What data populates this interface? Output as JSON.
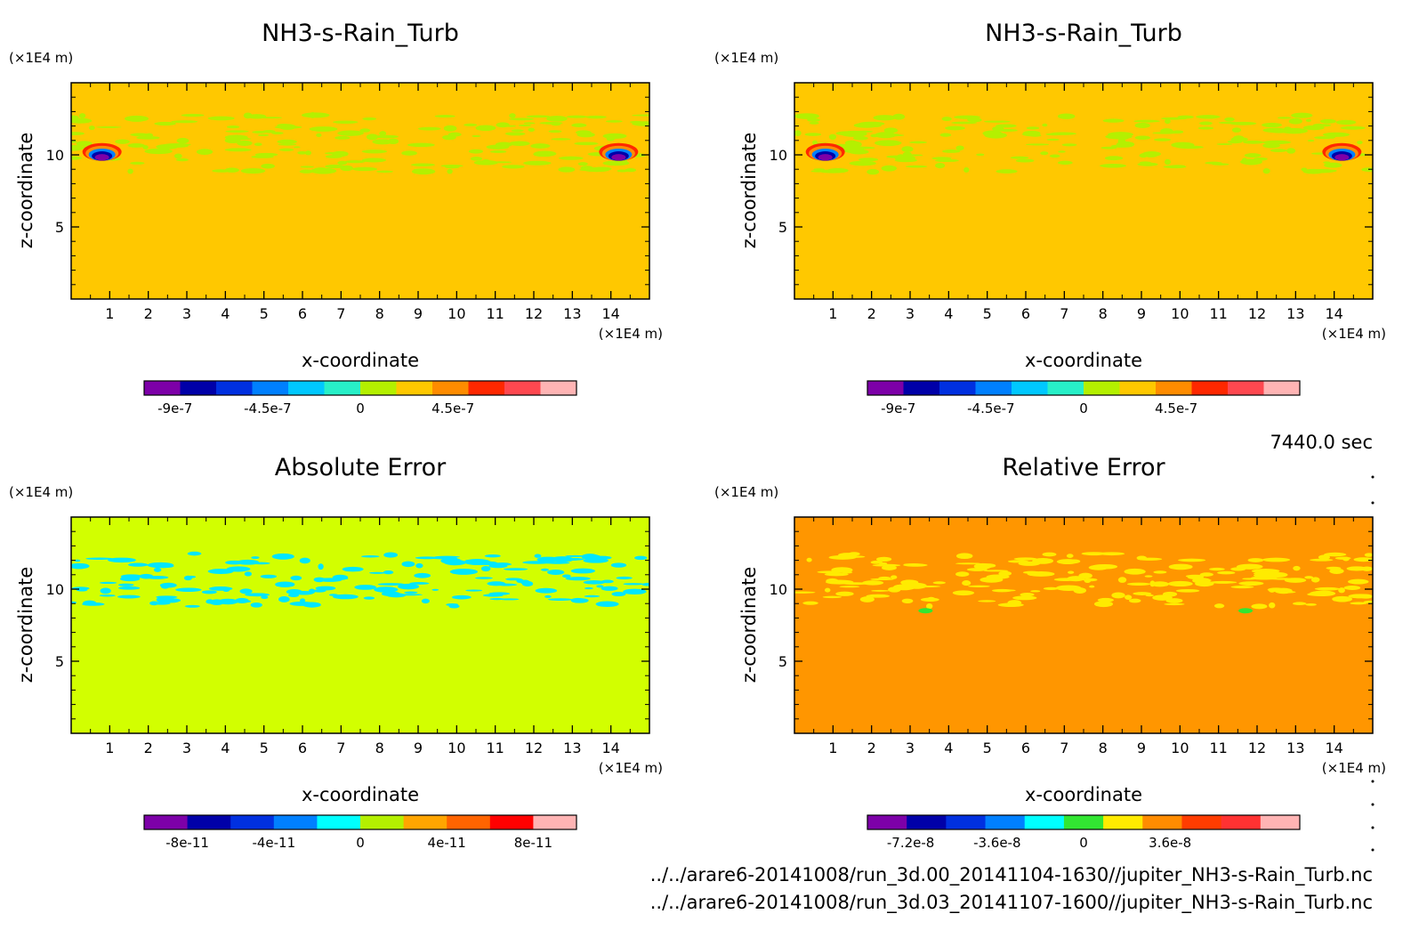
{
  "chart_data": [
    {
      "type": "heatmap",
      "panel": "top-left",
      "title": "NH3-s-Rain_Turb",
      "xlabel": "x-coordinate",
      "ylabel": "z-coordinate",
      "x_unit": "(×1E4 m)",
      "y_unit": "(×1E4 m)",
      "xlim": [
        0,
        15
      ],
      "ylim": [
        0,
        15
      ],
      "x_ticks": [
        "1",
        "2",
        "3",
        "4",
        "5",
        "6",
        "7",
        "8",
        "9",
        "10",
        "11",
        "12",
        "13",
        "14"
      ],
      "y_ticks": [
        "5",
        "10"
      ],
      "colorbar": {
        "colors": [
          "#7d00a8",
          "#0000a8",
          "#0030e0",
          "#0080ff",
          "#00c8ff",
          "#28f0c8",
          "#b4f000",
          "#ffc800",
          "#ff8c00",
          "#ff2800",
          "#ff4850",
          "#ffb4b4"
        ],
        "tick_labels": [
          "-9e-7",
          "-4.5e-7",
          "0",
          "4.5e-7"
        ],
        "tick_values": [
          -9e-07,
          -4.5e-07,
          0,
          4.5e-07
        ],
        "range": [
          -1.05e-06,
          1.05e-06
        ]
      },
      "background_color": "#ffc800",
      "features": [
        {
          "kind": "band",
          "ymin": 8.8,
          "ymax": 12.8,
          "color": "#b4f000",
          "value": -1e-07,
          "note": "wavy turbulent layer"
        },
        {
          "kind": "blob",
          "x": 0.8,
          "y": 10.2,
          "values": [
            -9e-07,
            9e-07
          ]
        },
        {
          "kind": "blob",
          "x": 14.2,
          "y": 10.2,
          "values": [
            -9e-07,
            9e-07
          ]
        }
      ]
    },
    {
      "type": "heatmap",
      "panel": "top-right",
      "title": "NH3-s-Rain_Turb",
      "xlabel": "x-coordinate",
      "ylabel": "z-coordinate",
      "x_unit": "(×1E4 m)",
      "y_unit": "(×1E4 m)",
      "xlim": [
        0,
        15
      ],
      "ylim": [
        0,
        15
      ],
      "x_ticks": [
        "1",
        "2",
        "3",
        "4",
        "5",
        "6",
        "7",
        "8",
        "9",
        "10",
        "11",
        "12",
        "13",
        "14"
      ],
      "y_ticks": [
        "5",
        "10"
      ],
      "colorbar": {
        "colors": [
          "#7d00a8",
          "#0000a8",
          "#0030e0",
          "#0080ff",
          "#00c8ff",
          "#28f0c8",
          "#b4f000",
          "#ffc800",
          "#ff8c00",
          "#ff2800",
          "#ff4850",
          "#ffb4b4"
        ],
        "tick_labels": [
          "-9e-7",
          "-4.5e-7",
          "0",
          "4.5e-7"
        ],
        "tick_values": [
          -9e-07,
          -4.5e-07,
          0,
          4.5e-07
        ],
        "range": [
          -1.05e-06,
          1.05e-06
        ]
      },
      "background_color": "#ffc800",
      "features": [
        {
          "kind": "band",
          "ymin": 8.8,
          "ymax": 12.8,
          "color": "#b4f000",
          "value": -1e-07,
          "note": "wavy turbulent layer"
        },
        {
          "kind": "blob",
          "x": 0.8,
          "y": 10.2,
          "values": [
            -9e-07,
            9e-07
          ]
        },
        {
          "kind": "blob",
          "x": 14.2,
          "y": 10.2,
          "values": [
            -9e-07,
            9e-07
          ]
        }
      ]
    },
    {
      "type": "heatmap",
      "panel": "bottom-left",
      "title": "Absolute Error",
      "xlabel": "x-coordinate",
      "ylabel": "z-coordinate",
      "x_unit": "(×1E4 m)",
      "y_unit": "(×1E4 m)",
      "xlim": [
        0,
        15
      ],
      "ylim": [
        0,
        15
      ],
      "x_ticks": [
        "1",
        "2",
        "3",
        "4",
        "5",
        "6",
        "7",
        "8",
        "9",
        "10",
        "11",
        "12",
        "13",
        "14"
      ],
      "y_ticks": [
        "5",
        "10"
      ],
      "colorbar": {
        "colors": [
          "#7d00a8",
          "#0000a8",
          "#0030e0",
          "#0080ff",
          "#00ffff",
          "#b4f000",
          "#ffa500",
          "#ff6400",
          "#ff0000",
          "#ffb4b4"
        ],
        "tick_labels": [
          "-8e-11",
          "-4e-11",
          "0",
          "4e-11",
          "8e-11"
        ],
        "tick_values": [
          -8e-11,
          -4e-11,
          0,
          4e-11,
          8e-11
        ],
        "range": [
          -1e-10,
          1e-10
        ]
      },
      "background_color": "#d2ff00",
      "features": [
        {
          "kind": "band",
          "ymin": 8.8,
          "ymax": 12.5,
          "color": "#00e6ff",
          "value": -1e-11,
          "note": "patchy error layer"
        }
      ]
    },
    {
      "type": "heatmap",
      "panel": "bottom-right",
      "title": "Relative Error",
      "xlabel": "x-coordinate",
      "ylabel": "z-coordinate",
      "x_unit": "(×1E4 m)",
      "y_unit": "(×1E4 m)",
      "xlim": [
        0,
        15
      ],
      "ylim": [
        0,
        15
      ],
      "x_ticks": [
        "1",
        "2",
        "3",
        "4",
        "5",
        "6",
        "7",
        "8",
        "9",
        "10",
        "11",
        "12",
        "13",
        "14"
      ],
      "y_ticks": [
        "5",
        "10"
      ],
      "colorbar": {
        "colors": [
          "#7d00a8",
          "#0000a8",
          "#0030e0",
          "#0080ff",
          "#00ffff",
          "#32e632",
          "#ffeb00",
          "#ff8c00",
          "#ff3c00",
          "#ff3232",
          "#ffb4b4"
        ],
        "tick_labels": [
          "-7.2e-8",
          "-3.6e-8",
          "0",
          "3.6e-8"
        ],
        "tick_values": [
          -7.2e-08,
          -3.6e-08,
          0,
          3.6e-08
        ],
        "range": [
          -9e-08,
          9e-08
        ]
      },
      "background_color": "#ff9600",
      "features": [
        {
          "kind": "band",
          "ymin": 8.8,
          "ymax": 12.5,
          "color": "#ffeb00",
          "value": -5e-09,
          "note": "patchy error layer"
        },
        {
          "kind": "blob",
          "x": 3.4,
          "y": 8.5,
          "values": [
            -2e-08
          ]
        },
        {
          "kind": "blob",
          "x": 11.7,
          "y": 8.5,
          "values": [
            -2e-08
          ]
        }
      ]
    }
  ],
  "time_label": "7440.0 sec",
  "files": [
    "../../arare6-20141008/run_3d.00_20141104-1630//jupiter_NH3-s-Rain_Turb.nc",
    "../../arare6-20141008/run_3d.03_20141107-1600//jupiter_NH3-s-Rain_Turb.nc"
  ]
}
